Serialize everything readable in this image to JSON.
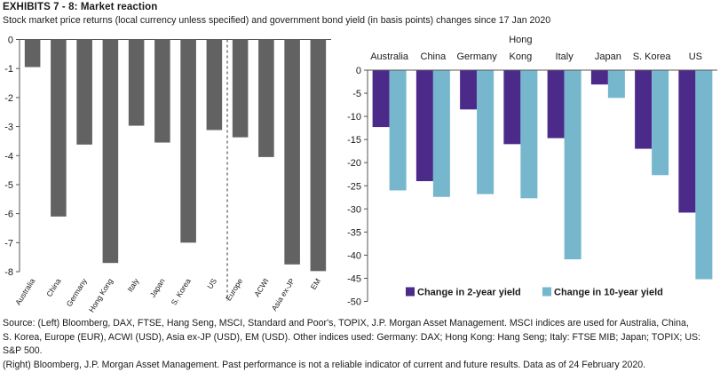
{
  "header": {
    "exhibit": "EXHIBITS 7 - 8: Market reaction",
    "subtitle": "Stock market price returns (local currency unless specified) and government bond yield (in basis points) changes since 17 Jan 2020"
  },
  "chart_data": [
    {
      "type": "bar",
      "title": "Stock market price returns since 17 Jan 2020",
      "categories": [
        "Australia",
        "China",
        "Germany",
        "Hong Kong",
        "Italy",
        "Japan",
        "S. Korea",
        "US",
        "Europe",
        "ACWI",
        "Asia ex-JP",
        "EM"
      ],
      "values": [
        -0.95,
        -6.1,
        -3.62,
        -7.7,
        -2.97,
        -3.55,
        -7.0,
        -3.12,
        -3.37,
        -4.05,
        -7.75,
        -7.98
      ],
      "separator_after": "US",
      "yticks": [
        0,
        -1,
        -2,
        -3,
        -4,
        -5,
        -6,
        -7,
        -8
      ],
      "ylim": [
        -8,
        0
      ],
      "xlabel": "",
      "ylabel": "",
      "color": "#626262",
      "grid": false
    },
    {
      "type": "bar",
      "title": "Government bond yield changes (bp) since 17 Jan 2020",
      "categories": [
        "Australia",
        "China",
        "Germany",
        "Hong Kong",
        "Italy",
        "Japan",
        "S. Korea",
        "US"
      ],
      "series": [
        {
          "name": "Change in 2-year yield",
          "color": "#4b2a8a",
          "values": [
            -12.3,
            -24,
            -8.5,
            -16,
            -14.7,
            -3.1,
            -17,
            -30.8
          ]
        },
        {
          "name": "Change in 10-year yield",
          "color": "#76b7ce",
          "values": [
            -26,
            -27.4,
            -26.8,
            -27.7,
            -40.9,
            -6,
            -22.7,
            -45.2
          ]
        }
      ],
      "yticks": [
        0,
        -5,
        -10,
        -15,
        -20,
        -25,
        -30,
        -35,
        -40,
        -45,
        -50
      ],
      "ylim": [
        -50,
        0
      ],
      "legend": "bottom-center",
      "grid": false
    }
  ],
  "source": {
    "line1": "Source: (Left) Bloomberg, DAX, FTSE, Hang Seng, MSCI, Standard and Poor's, TOPIX, J.P. Morgan Asset Management. MSCI indices are used for Australia, China,",
    "line2": "S. Korea, Europe (EUR), ACWI (USD), Asia ex-JP (USD), EM (USD). Other indices used: Germany: DAX; Hong Kong: Hang Seng; Italy: FTSE MIB; Japan; TOPIX; US: S&P 500.",
    "line3": "(Right) Bloomberg, J.P. Morgan Asset Management. Past performance is not a reliable indicator of current and future results. Data as of 24 February 2020."
  }
}
